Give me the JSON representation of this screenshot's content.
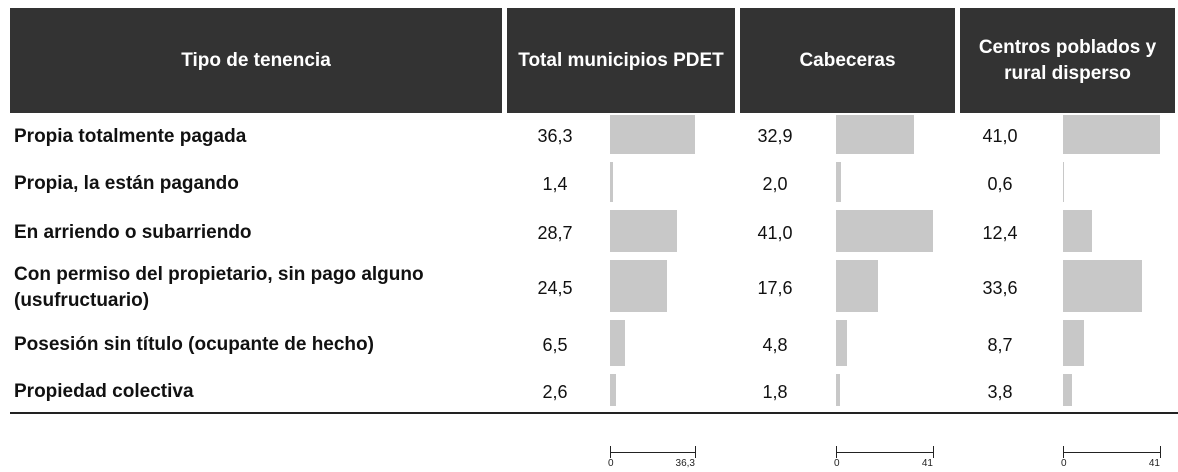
{
  "table": {
    "headers": [
      "Tipo de tenencia",
      "Total municipios PDET",
      "Cabeceras",
      "Centros poblados y rural disperso"
    ],
    "rows": [
      {
        "label": "Propia totalmente pagada",
        "values": [
          36.3,
          32.9,
          41.0
        ],
        "value_labels": [
          "36,3",
          "32,9",
          "41,0"
        ]
      },
      {
        "label": "Propia, la están pagando",
        "values": [
          1.4,
          2.0,
          0.6
        ],
        "value_labels": [
          "1,4",
          "2,0",
          "0,6"
        ]
      },
      {
        "label": "En arriendo o subarriendo",
        "values": [
          28.7,
          41.0,
          12.4
        ],
        "value_labels": [
          "28,7",
          "41,0",
          "12,4"
        ]
      },
      {
        "label": "Con permiso del propietario, sin pago alguno (usufructuario)",
        "values": [
          24.5,
          17.6,
          33.6
        ],
        "value_labels": [
          "24,5",
          "17,6",
          "33,6"
        ]
      },
      {
        "label": "Posesión sin título (ocupante de hecho)",
        "values": [
          6.5,
          4.8,
          8.7
        ],
        "value_labels": [
          "6,5",
          "4,8",
          "8,7"
        ]
      },
      {
        "label": "Propiedad colectiva",
        "values": [
          2.6,
          1.8,
          3.8
        ],
        "value_labels": [
          "2,6",
          "1,8",
          "3,8"
        ]
      }
    ],
    "bar_color": "#c8c8c8",
    "scales": [
      {
        "xlim": [
          0,
          36.3
        ],
        "xticks": [
          0,
          {
            "value": 36.3,
            "label": "36,3"
          }
        ]
      },
      {
        "xlim": [
          0,
          41
        ],
        "xticks": [
          0,
          41
        ]
      },
      {
        "xlim": [
          0,
          41
        ],
        "xticks": [
          0,
          41
        ]
      }
    ]
  }
}
